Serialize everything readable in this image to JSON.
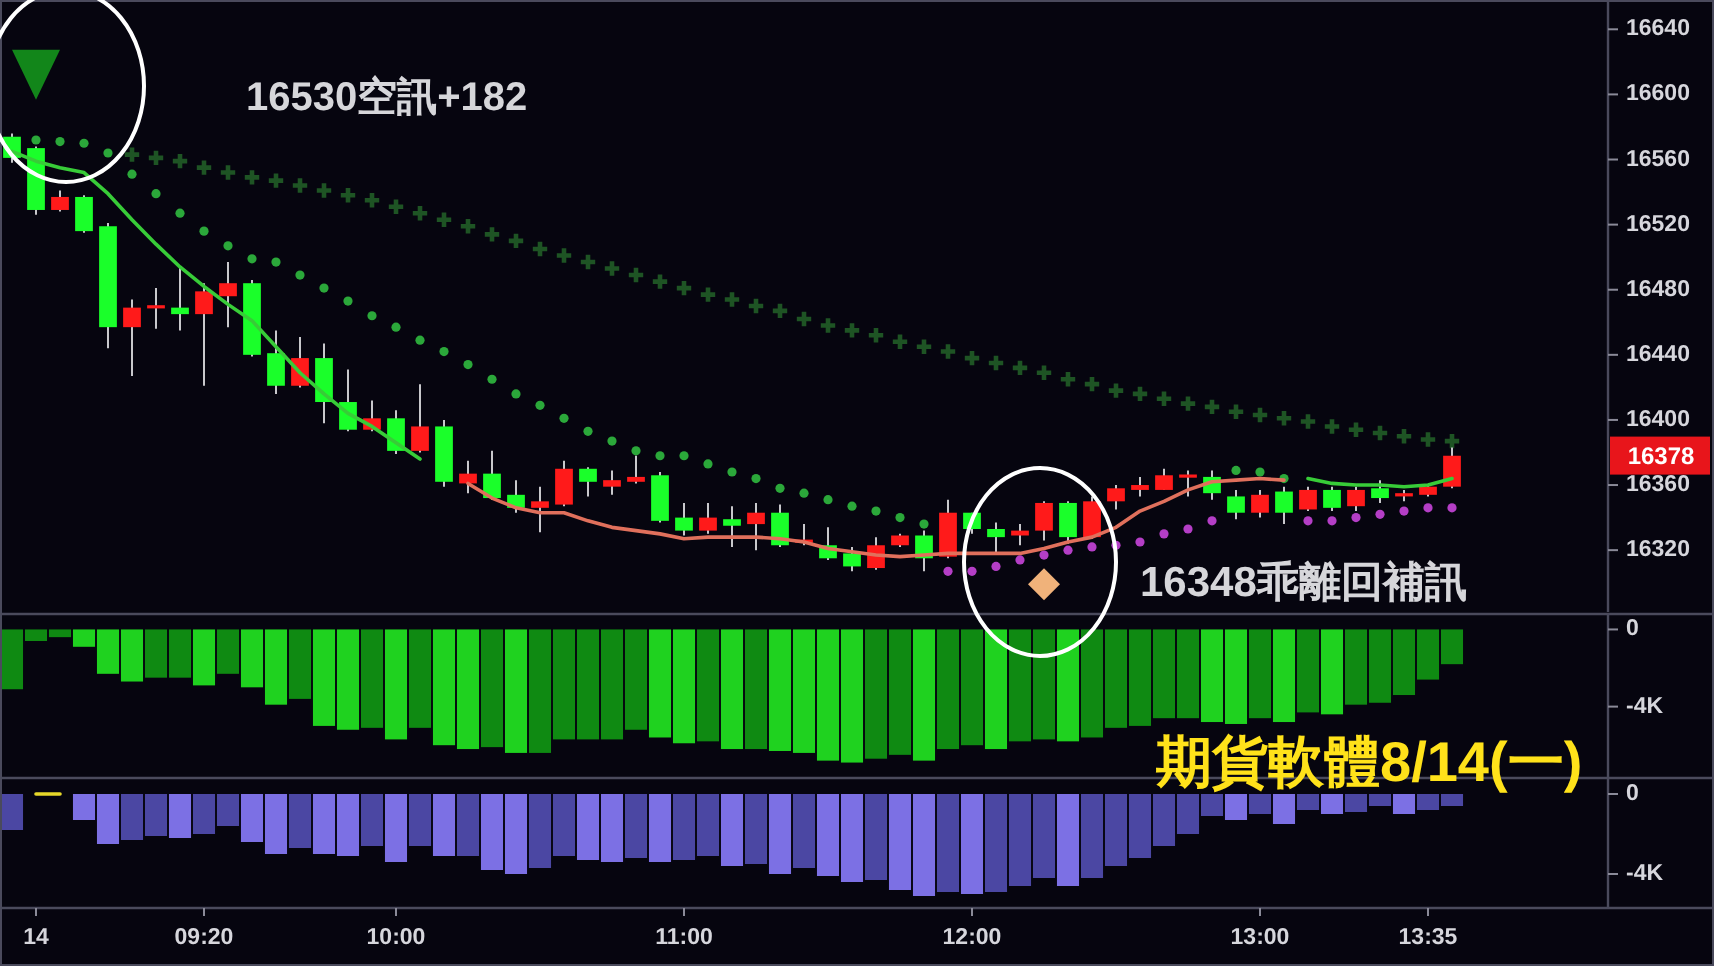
{
  "chart_data": [
    {
      "type": "candlestick",
      "tick_labels": "y",
      "categories": [
        null,
        null,
        null,
        null,
        null,
        null,
        null,
        null,
        null,
        null,
        null,
        null,
        null,
        null,
        null,
        null,
        null,
        null,
        null,
        null,
        null,
        null,
        null,
        null,
        null,
        null,
        null,
        null,
        null,
        null,
        null,
        null,
        null,
        null,
        null,
        null,
        null,
        null,
        null,
        null,
        null,
        null,
        null,
        null,
        null,
        null,
        null,
        null,
        null,
        null,
        null,
        null,
        null,
        null,
        null,
        null,
        null,
        null,
        null,
        null,
        null,
        null,
        null,
        null,
        null,
        null,
        null
      ],
      "ohlc": [
        [
          16574,
          16576,
          16558,
          16561
        ],
        [
          16567,
          16568,
          16526,
          16529
        ],
        [
          16529,
          16541,
          16528,
          16537
        ],
        [
          16537,
          16538,
          16515,
          16516
        ],
        [
          16519,
          16521,
          16444,
          16457
        ],
        [
          16457,
          16474,
          16427,
          16469
        ],
        [
          16469,
          16481,
          16456,
          16470
        ],
        [
          16469,
          16494,
          16455,
          16465
        ],
        [
          16465,
          16484,
          16421,
          16479
        ],
        [
          16476,
          16497,
          16457,
          16484
        ],
        [
          16484,
          16486,
          16439,
          16440
        ],
        [
          16441,
          16455,
          16416,
          16421
        ],
        [
          16421,
          16451,
          16420,
          16438
        ],
        [
          16438,
          16447,
          16398,
          16411
        ],
        [
          16411,
          16431,
          16393,
          16394
        ],
        [
          16394,
          16412,
          16393,
          16401
        ],
        [
          16401,
          16406,
          16379,
          16381
        ],
        [
          16381,
          16422,
          16380,
          16396
        ],
        [
          16396,
          16400,
          16359,
          16362
        ],
        [
          16361,
          16375,
          16355,
          16367
        ],
        [
          16367,
          16381,
          16351,
          16352
        ],
        [
          16354,
          16363,
          16343,
          16346
        ],
        [
          16346,
          16359,
          16331,
          16350
        ],
        [
          16348,
          16375,
          16347,
          16370
        ],
        [
          16370,
          16371,
          16353,
          16362
        ],
        [
          16359,
          16369,
          16354,
          16363
        ],
        [
          16362,
          16378,
          16361,
          16365
        ],
        [
          16366,
          16368,
          16337,
          16338
        ],
        [
          16340,
          16349,
          16329,
          16332
        ],
        [
          16332,
          16349,
          16330,
          16340
        ],
        [
          16339,
          16347,
          16322,
          16335
        ],
        [
          16336,
          16349,
          16320,
          16343
        ],
        [
          16343,
          16348,
          16322,
          16323
        ],
        [
          16325,
          16336,
          16323,
          16326
        ],
        [
          16323,
          16334,
          16314,
          16315
        ],
        [
          16318,
          16322,
          16307,
          16310
        ],
        [
          16309,
          16328,
          16308,
          16323
        ],
        [
          16323,
          16330,
          16322,
          16329
        ],
        [
          16329,
          16332,
          16307,
          16315
        ],
        [
          16316,
          16351,
          16315,
          16343
        ],
        [
          16343,
          16343,
          16330,
          16333
        ],
        [
          16333,
          16337,
          16318,
          16328
        ],
        [
          16329,
          16336,
          16323,
          16332
        ],
        [
          16332,
          16350,
          16326,
          16349
        ],
        [
          16349,
          16350,
          16324,
          16328
        ],
        [
          16328,
          16353,
          16327,
          16350
        ],
        [
          16350,
          16360,
          16345,
          16358
        ],
        [
          16357,
          16365,
          16353,
          16360
        ],
        [
          16357,
          16370,
          16357,
          16366
        ],
        [
          16365,
          16369,
          16353,
          16366
        ],
        [
          16365,
          16369,
          16351,
          16355
        ],
        [
          16353,
          16357,
          16339,
          16343
        ],
        [
          16343,
          16357,
          16340,
          16354
        ],
        [
          16356,
          16359,
          16336,
          16343
        ],
        [
          16345,
          16359,
          16344,
          16357
        ],
        [
          16357,
          16359,
          16344,
          16346
        ],
        [
          16347,
          16359,
          16344,
          16357
        ],
        [
          16358,
          16363,
          16349,
          16352
        ],
        [
          16353,
          16357,
          16350,
          16355
        ],
        [
          16354,
          16360,
          16353,
          16359
        ],
        [
          16359,
          16383,
          16358,
          16378
        ],
        null,
        null,
        null,
        null,
        null,
        null
      ],
      "colors": [
        "#1aff2a",
        "#1aff2a",
        "#ff1a1a",
        "#1aff2a",
        "#1aff2a",
        "#ff1a1a",
        "#ff1a1a",
        "#1aff2a",
        "#ff1a1a",
        "#ff1a1a",
        "#1aff2a",
        "#1aff2a",
        "#ff1a1a",
        "#1aff2a",
        "#1aff2a",
        "#ff1a1a",
        "#1aff2a",
        "#ff1a1a",
        "#1aff2a",
        "#ff1a1a",
        "#1aff2a",
        "#1aff2a",
        "#ff1a1a",
        "#ff1a1a",
        "#1aff2a",
        "#ff1a1a",
        "#ff1a1a",
        "#1aff2a",
        "#1aff2a",
        "#ff1a1a",
        "#1aff2a",
        "#ff1a1a",
        "#1aff2a",
        "#ff1a1a",
        "#1aff2a",
        "#1aff2a",
        "#ff1a1a",
        "#ff1a1a",
        "#1aff2a",
        "#ff1a1a",
        "#1aff2a",
        "#1aff2a",
        "#ff1a1a",
        "#ff1a1a",
        "#1aff2a",
        "#ff1a1a",
        "#ff1a1a",
        "#ff1a1a",
        "#ff1a1a",
        "#ff1a1a",
        "#1aff2a",
        "#1aff2a",
        "#ff1a1a",
        "#1aff2a",
        "#ff1a1a",
        "#1aff2a",
        "#ff1a1a",
        "#1aff2a",
        "#ff1a1a",
        "#ff1a1a",
        "#ff1a1a",
        null,
        null,
        null,
        null,
        null,
        null
      ],
      "series": [
        {
          "type": "scatter",
          "marker": "cross",
          "color": "#1e5424",
          "values": [
            null,
            null,
            null,
            null,
            null,
            16563,
            16561,
            16559,
            16555,
            16552,
            16549,
            16547,
            16544,
            16541,
            16538,
            16535,
            16531,
            16527,
            16523,
            16519,
            16514,
            16510,
            16505,
            16501,
            16497,
            16493,
            16489,
            16485,
            16481,
            16477,
            16474,
            16470,
            16467,
            16462,
            16458,
            16455,
            16452,
            16448,
            16445,
            16442,
            16438,
            16435,
            16432,
            16429,
            16425,
            16422,
            16418,
            16416,
            16413,
            16410,
            16408,
            16405,
            16403,
            16401,
            16399,
            16396,
            16394,
            16392,
            16390,
            16388,
            16387,
            null,
            null,
            null,
            null,
            null,
            null
          ]
        },
        {
          "type": "scatter",
          "marker": "circle",
          "color": "#2ba83a",
          "values": [
            null,
            16572,
            16571,
            16570,
            16564,
            16551,
            16539,
            16527,
            16516,
            16507,
            16499,
            16497,
            16489,
            16481,
            16473,
            16464,
            16457,
            16449,
            16442,
            16434,
            16425,
            16416,
            16409,
            16401,
            16393,
            16387,
            16381,
            16378,
            16378,
            16373,
            16368,
            16364,
            16358,
            16355,
            16351,
            16347,
            16344,
            16340,
            16336,
            null,
            null,
            null,
            null,
            null,
            null,
            null,
            null,
            null,
            null,
            null,
            null,
            16369,
            16368,
            16364,
            null,
            null,
            null,
            null,
            null,
            null,
            null,
            null,
            null,
            null,
            null,
            null,
            null
          ]
        },
        {
          "type": "scatter",
          "marker": "circle",
          "color": "#b43ec6",
          "values": [
            null,
            null,
            null,
            null,
            null,
            null,
            null,
            null,
            null,
            null,
            null,
            null,
            null,
            null,
            null,
            null,
            null,
            null,
            null,
            null,
            null,
            null,
            null,
            null,
            null,
            null,
            null,
            null,
            null,
            null,
            null,
            null,
            null,
            null,
            null,
            null,
            null,
            null,
            null,
            16307,
            16307,
            16310,
            16314,
            16317,
            16320,
            16322,
            16323,
            16325,
            16330,
            16333,
            16338,
            null,
            null,
            null,
            16338,
            16338,
            16340,
            16342,
            16344,
            16346,
            16346,
            null,
            null,
            null,
            null,
            null,
            null
          ]
        },
        {
          "type": "line",
          "color": "#38cc38",
          "values": [
            16565,
            16559,
            16555,
            16552,
            16539,
            16523,
            16508,
            16494,
            16482,
            16471,
            16461,
            16445,
            16429,
            16416,
            16404,
            16396,
            16386,
            16376,
            null,
            null,
            null,
            null,
            null,
            null,
            null,
            null,
            null,
            null,
            null,
            null,
            null,
            null,
            null,
            null,
            null,
            null,
            null,
            null,
            null,
            null,
            null,
            null,
            null,
            null,
            null,
            null,
            null,
            null,
            null,
            null,
            null,
            null,
            null,
            null,
            16364,
            16361,
            16360,
            16360,
            16359,
            16360,
            16364,
            null,
            null,
            null,
            null,
            null,
            null
          ]
        },
        {
          "type": "line",
          "color": "#e0705c",
          "values": [
            null,
            null,
            null,
            null,
            null,
            null,
            null,
            null,
            null,
            null,
            null,
            null,
            null,
            null,
            null,
            null,
            null,
            null,
            null,
            16361,
            16352,
            16346,
            16343,
            16343,
            16338,
            16334,
            16332,
            16330,
            16327,
            16328,
            16328,
            16328,
            16327,
            16325,
            16321,
            16319,
            16317,
            16316,
            16317,
            16318,
            16318,
            16318,
            16318,
            16321,
            16325,
            16328,
            16334,
            16344,
            16350,
            16357,
            16362,
            16363,
            16364,
            16363,
            null,
            null,
            null,
            null,
            null,
            null,
            null,
            null,
            null,
            null,
            null,
            null,
            null
          ]
        },
        {
          "type": "scatter",
          "marker": "triangle",
          "color": "#12861a",
          "values": [
            null,
            16612,
            null,
            null,
            null,
            null,
            null,
            null,
            null,
            null,
            null,
            null,
            null,
            null,
            null,
            null,
            null,
            null,
            null,
            null,
            null,
            null,
            null,
            null,
            null,
            null,
            null,
            null,
            null,
            null,
            null,
            null,
            null,
            null,
            null,
            null,
            null,
            null,
            null,
            null,
            null,
            null,
            null,
            null,
            null,
            null,
            null,
            null,
            null,
            null,
            null,
            null,
            null,
            null,
            null,
            null,
            null,
            null,
            null,
            null,
            null,
            null,
            null,
            null,
            null,
            null,
            null
          ]
        },
        {
          "type": "scatter",
          "marker": "diamond",
          "color": "#f0b27a",
          "values": [
            null,
            null,
            null,
            null,
            null,
            null,
            null,
            null,
            null,
            null,
            null,
            null,
            null,
            null,
            null,
            null,
            null,
            null,
            null,
            null,
            null,
            null,
            null,
            null,
            null,
            null,
            null,
            null,
            null,
            null,
            null,
            null,
            null,
            null,
            null,
            null,
            null,
            null,
            null,
            null,
            null,
            null,
            null,
            16299,
            null,
            null,
            null,
            null,
            null,
            null,
            null,
            null,
            null,
            null,
            null,
            null,
            null,
            null,
            null,
            null,
            null,
            null,
            null,
            null,
            null,
            null,
            null
          ]
        }
      ],
      "ylim": [
        16282,
        16658
      ],
      "yticks": [
        16320,
        16360,
        16400,
        16440,
        16480,
        16520,
        16560,
        16600,
        16640
      ],
      "annotations": [
        "16530空訊+182",
        "16348乖離回補訊",
        "16378"
      ]
    },
    {
      "type": "bar",
      "tick_labels": "y",
      "categories": [
        null,
        null,
        null,
        null,
        null,
        null,
        null,
        null,
        null,
        null,
        null,
        null,
        null,
        null,
        null,
        null,
        null,
        null,
        null,
        null,
        null,
        null,
        null,
        null,
        null,
        null,
        null,
        null,
        null,
        null,
        null,
        null,
        null,
        null,
        null,
        null,
        null,
        null,
        null,
        null,
        null,
        null,
        null,
        null,
        null,
        null,
        null,
        null,
        null,
        null,
        null,
        null,
        null,
        null,
        null,
        null,
        null,
        null,
        null,
        null,
        null,
        null,
        null,
        null,
        null,
        null,
        null
      ],
      "values": [
        -3100,
        -600,
        -400,
        -900,
        -2300,
        -2700,
        -2500,
        -2500,
        -2900,
        -2300,
        -3000,
        -3900,
        -3600,
        -5000,
        -5200,
        -5100,
        -5700,
        -5100,
        -6000,
        -6200,
        -6100,
        -6400,
        -6400,
        -5700,
        -5700,
        -5700,
        -5200,
        -5600,
        -5900,
        -5800,
        -6200,
        -6200,
        -6300,
        -6400,
        -6800,
        -6900,
        -6700,
        -6500,
        -6800,
        -6200,
        -6000,
        -6200,
        -5800,
        -5700,
        -5800,
        -5600,
        -5100,
        -5000,
        -4600,
        -4600,
        -4800,
        -4900,
        -4600,
        -4800,
        -4300,
        -4400,
        -3900,
        -3800,
        -3400,
        -2600,
        -1800,
        null,
        null,
        null,
        null,
        null,
        null
      ],
      "colors": [
        "#0f8a12",
        "#0f8a12",
        "#0f8a12",
        "#1fd21f",
        "#1fd21f",
        "#1fd21f",
        "#0f8a12",
        "#0f8a12",
        "#1fd21f",
        "#0f8a12",
        "#1fd21f",
        "#1fd21f",
        "#0f8a12",
        "#1fd21f",
        "#1fd21f",
        "#0f8a12",
        "#1fd21f",
        "#0f8a12",
        "#1fd21f",
        "#1fd21f",
        "#0f8a12",
        "#1fd21f",
        "#0f8a12",
        "#0f8a12",
        "#0f8a12",
        "#0f8a12",
        "#0f8a12",
        "#1fd21f",
        "#1fd21f",
        "#0f8a12",
        "#1fd21f",
        "#0f8a12",
        "#1fd21f",
        "#1fd21f",
        "#1fd21f",
        "#1fd21f",
        "#0f8a12",
        "#0f8a12",
        "#1fd21f",
        "#0f8a12",
        "#0f8a12",
        "#1fd21f",
        "#0f8a12",
        "#0f8a12",
        "#1fd21f",
        "#0f8a12",
        "#0f8a12",
        "#0f8a12",
        "#0f8a12",
        "#0f8a12",
        "#1fd21f",
        "#1fd21f",
        "#0f8a12",
        "#1fd21f",
        "#0f8a12",
        "#1fd21f",
        "#0f8a12",
        "#0f8a12",
        "#0f8a12",
        "#0f8a12",
        "#0f8a12",
        null,
        null,
        null,
        null,
        null,
        null
      ],
      "ylim": [
        -7700,
        800
      ],
      "yticks": [
        {
          "value": -4000,
          "label": "-4K"
        },
        0
      ]
    },
    {
      "type": "bar",
      "categories": [
        null,
        "14",
        null,
        null,
        null,
        null,
        null,
        null,
        "09:20",
        null,
        null,
        null,
        null,
        null,
        null,
        null,
        "10:00",
        null,
        null,
        null,
        null,
        null,
        null,
        null,
        null,
        null,
        null,
        null,
        "11:00",
        null,
        null,
        null,
        null,
        null,
        null,
        null,
        null,
        null,
        null,
        null,
        "12:00",
        null,
        null,
        null,
        null,
        null,
        null,
        null,
        null,
        null,
        null,
        null,
        "13:00",
        null,
        null,
        null,
        null,
        null,
        null,
        "13:35",
        null,
        null,
        null,
        null,
        null,
        null,
        null
      ],
      "values": [
        -1800,
        null,
        null,
        -1300,
        -2500,
        -2300,
        -2100,
        -2200,
        -2000,
        -1600,
        -2400,
        -3000,
        -2700,
        -3000,
        -3100,
        -2600,
        -3400,
        -2600,
        -3100,
        -3100,
        -3800,
        -4000,
        -3700,
        -3100,
        -3300,
        -3400,
        -3200,
        -3400,
        -3300,
        -3100,
        -3600,
        -3500,
        -4000,
        -3700,
        -4100,
        -4400,
        -4300,
        -4800,
        -5100,
        -4900,
        -5000,
        -4900,
        -4600,
        -4200,
        -4600,
        -4200,
        -3600,
        -3200,
        -2600,
        -2000,
        -1100,
        -1300,
        -1000,
        -1500,
        -800,
        -1000,
        -900,
        -600,
        -1000,
        -800,
        -600,
        null,
        null,
        null,
        null,
        null,
        null
      ],
      "colors": [
        "#4b47a3",
        null,
        null,
        "#7c70e4",
        "#7c70e4",
        "#4b47a3",
        "#4b47a3",
        "#7c70e4",
        "#4b47a3",
        "#4b47a3",
        "#7c70e4",
        "#7c70e4",
        "#4b47a3",
        "#7c70e4",
        "#7c70e4",
        "#4b47a3",
        "#7c70e4",
        "#4b47a3",
        "#7c70e4",
        "#4b47a3",
        "#7c70e4",
        "#7c70e4",
        "#4b47a3",
        "#4b47a3",
        "#7c70e4",
        "#7c70e4",
        "#4b47a3",
        "#7c70e4",
        "#4b47a3",
        "#4b47a3",
        "#7c70e4",
        "#4b47a3",
        "#7c70e4",
        "#4b47a3",
        "#7c70e4",
        "#7c70e4",
        "#4b47a3",
        "#7c70e4",
        "#7c70e4",
        "#4b47a3",
        "#7c70e4",
        "#4b47a3",
        "#4b47a3",
        "#4b47a3",
        "#7c70e4",
        "#4b47a3",
        "#4b47a3",
        "#4b47a3",
        "#4b47a3",
        "#4b47a3",
        "#4b47a3",
        "#7c70e4",
        "#4b47a3",
        "#7c70e4",
        "#4b47a3",
        "#7c70e4",
        "#4b47a3",
        "#4b47a3",
        "#7c70e4",
        "#4b47a3",
        "#4b47a3",
        null,
        null,
        null,
        null,
        null,
        null
      ],
      "series": [
        {
          "type": "line",
          "color": "#e6d82a",
          "values": [
            null,
            0,
            0,
            null,
            null,
            null,
            null,
            null,
            null,
            null,
            null,
            null,
            null,
            null,
            null,
            null,
            null,
            null,
            null,
            null,
            null,
            null,
            null,
            null,
            null,
            null,
            null,
            null,
            null,
            null,
            null,
            null,
            null,
            null,
            null,
            null,
            null,
            null,
            null,
            null,
            null,
            null,
            null,
            null,
            null,
            null,
            null,
            null,
            null,
            null,
            null,
            null,
            null,
            null,
            null,
            null,
            null,
            null,
            null,
            null,
            null,
            null,
            null,
            null,
            null,
            null,
            null
          ]
        }
      ],
      "ylim": [
        -5700,
        800
      ],
      "yticks": [
        {
          "value": -4000,
          "label": "-4K"
        },
        0
      ],
      "annotations": [
        "期貨軟體8/14(一)"
      ]
    }
  ]
}
